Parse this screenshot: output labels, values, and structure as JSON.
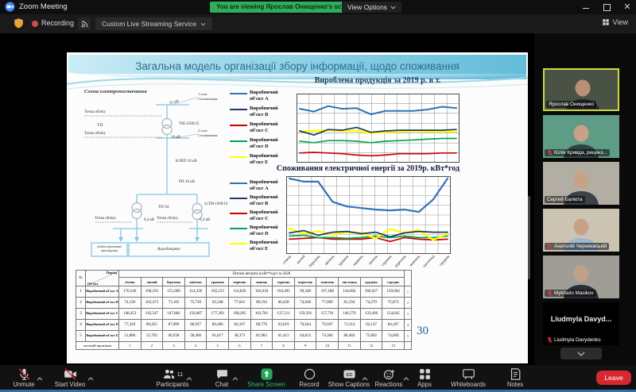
{
  "window": {
    "app_title": "Zoom Meeting",
    "banner_text": "You are viewing Ярослав Онищенко's screen",
    "view_options_label": "View Options",
    "recording_label": "Recording",
    "streaming_service_label": "Custom Live Streaming Service",
    "view_label": "View"
  },
  "slide": {
    "title": "Загальна модель організації збору інформації, щодо споживання",
    "page_number": "30",
    "diagram": {
      "title": "Схема електропостачання",
      "kv35": "35 кВ",
      "class1a": "1 клас",
      "class1b": "Споживання",
      "metering": "Точка обліку",
      "tp": "ТП",
      "tm": "ТМ-2500/35",
      "kv10": "10 кВ",
      "class2a": "2 клас",
      "class2b": "Споживання",
      "klep": "КЛЕП 10 кВ",
      "rp": "РП-10 кВ",
      "tp94": "ТП-94",
      "tm2": "2хТМ-1000/10",
      "kv04": "0,4 кВ",
      "box_admin_a": "адміністративні",
      "box_admin_b": "приміщення",
      "box_prod": "Виробництво"
    },
    "table": {
      "corner_no": "№",
      "corner_period": "Період",
      "corner_object": "Об'єкт",
      "span_header": "Питомі витрати в кВт*год/т за 2020",
      "months": [
        "січень",
        "лютий",
        "березень",
        "квітень",
        "травень",
        "червень",
        "липень",
        "серпень",
        "вересень",
        "жовтень",
        "листопад",
        "грудень"
      ],
      "avg_header": "середнє",
      "rows": [
        {
          "n": "1",
          "name": "Виробничий об'єкт А",
          "values": [
            "170,346",
            "168,193",
            "155,689",
            "114,336",
            "102,213",
            "114,826",
            "102,618",
            "104,495",
            "99,348",
            "107,188",
            "144,602",
            "166,627",
            "129,694"
          ]
        },
        {
          "n": "2",
          "name": "Виробничий об'єкт В",
          "values": [
            "74,120",
            "102,473",
            "73,165",
            "75,720",
            "62,248",
            "77,641",
            "80,194",
            "60,458",
            "74,638",
            "77,069",
            "81,194",
            "74,279",
            "75,873"
          ]
        },
        {
          "n": "3",
          "name": "Виробничий об'єкт С",
          "values": [
            "148,453",
            "142,547",
            "147,882",
            "156,687",
            "177,302",
            "198,205",
            "163,781",
            "137,511",
            "159,391",
            "157,791",
            "146,579",
            "133,496",
            "154,645"
          ]
        },
        {
          "n": "4",
          "name": "Виробничий об'єкт D",
          "values": [
            "77,320",
            "89,455",
            "87,909",
            "86,927",
            "80,486",
            "83,167",
            "80,776",
            "63,619",
            "70,644",
            "70,947",
            "71,214",
            "62,147",
            "84,187"
          ]
        },
        {
          "n": "5",
          "name": "Виробничий об'єкт Е",
          "values": [
            "51,880",
            "52,703",
            "60,938",
            "58,406",
            "61,817",
            "38,373",
            "81,983",
            "61,413",
            "64,813",
            "74,384",
            "88,484",
            "75,892",
            "74,609"
          ]
        }
      ],
      "row_index": [
        "1",
        "2",
        "3",
        "4",
        "5"
      ],
      "footer_label": "часовий проміжок",
      "footer_values": [
        "1",
        "2",
        "3",
        "4",
        "5",
        "6",
        "7",
        "8",
        "9",
        "10",
        "11",
        "12",
        "13"
      ]
    }
  },
  "chart_data": [
    {
      "type": "line",
      "title": "Вироблена продукція за 2019 р. в т.",
      "categories": [
        "січень",
        "лютий",
        "березень",
        "квітень",
        "травень",
        "червень",
        "липень",
        "серпень",
        "вересень",
        "жовтень",
        "листопад",
        "грудень"
      ],
      "legend_position": "left",
      "grid": true,
      "ylim": [
        0,
        100
      ],
      "units": "relative scale 0-100, y-axis unlabeled in source",
      "series": [
        {
          "name": "Виробничий об'єкт А",
          "color": "#2e74b5",
          "z": 5,
          "width": 2.0,
          "values": [
            78,
            74,
            82,
            78,
            79,
            70,
            75,
            75,
            75,
            77,
            81,
            79
          ]
        },
        {
          "name": "Виробничий об'єкт В",
          "color": "#1f3864",
          "z": 4,
          "width": 1.7,
          "values": [
            46,
            40,
            48,
            47,
            51,
            44,
            46,
            47,
            47,
            47,
            47,
            48
          ]
        },
        {
          "name": "Виробничий об'єкт С",
          "color": "#cc0000",
          "z": 1,
          "width": 1.7,
          "values": [
            14,
            15,
            14,
            13,
            11,
            10,
            11,
            13,
            13,
            13,
            14,
            14
          ]
        },
        {
          "name": "Виробничий об'єкт D",
          "color": "#00a550",
          "z": 2,
          "width": 1.7,
          "values": [
            31,
            29,
            32,
            32,
            31,
            29,
            31,
            32,
            33,
            34,
            35,
            35
          ]
        },
        {
          "name": "Виробничий об'єкт Е",
          "color": "#ffff00",
          "z": 3,
          "width": 2.4,
          "values": [
            45,
            46,
            47,
            46,
            46,
            43,
            44,
            45,
            46,
            45,
            45,
            45
          ]
        }
      ]
    },
    {
      "type": "line",
      "title": "Споживання електричної енергії за 2019р. кВт*год",
      "categories": [
        "січень",
        "лютий",
        "березень",
        "квітень",
        "травень",
        "червень",
        "липень",
        "серпень",
        "вересень",
        "жовтень",
        "листопад",
        "грудень"
      ],
      "legend_position": "left",
      "grid": true,
      "ylim": [
        0,
        100
      ],
      "units": "relative scale 0-100, y-axis unlabeled in source",
      "series": [
        {
          "name": "Виробничий об'єкт А",
          "color": "#2e74b5",
          "z": 5,
          "width": 2.2,
          "values": [
            97,
            93,
            93,
            67,
            61,
            59,
            57,
            56,
            57,
            54,
            70,
            97
          ]
        },
        {
          "name": "Виробничий об'єкт В",
          "color": "#1f3864",
          "z": 4,
          "width": 1.7,
          "values": [
            27,
            30,
            24,
            28,
            29,
            26,
            28,
            22,
            27,
            29,
            28,
            28
          ]
        },
        {
          "name": "Виробничий об'єкт С",
          "color": "#cc0000",
          "z": 1,
          "width": 1.7,
          "values": [
            19,
            20,
            21,
            19,
            19,
            19,
            21,
            16,
            21,
            19,
            18,
            19
          ]
        },
        {
          "name": "Виробничий об'єкт D",
          "color": "#00a550",
          "z": 2,
          "width": 1.7,
          "values": [
            23,
            24,
            21,
            21,
            20,
            21,
            23,
            21,
            23,
            21,
            21,
            23
          ]
        },
        {
          "name": "Виробничий об'єкт Е",
          "color": "#ffff00",
          "z": 3,
          "width": 2.4,
          "values": [
            33,
            26,
            29,
            25,
            28,
            27,
            20,
            32,
            27,
            31,
            18,
            26
          ]
        }
      ]
    }
  ],
  "participants": [
    {
      "name": "Ярослав Онищенко",
      "muted": false,
      "active": true,
      "video": true,
      "bg": "#4a5245",
      "shirt": "#23272b",
      "skin": "#b98f76"
    },
    {
      "name": "Юлія Кривда, реценз...",
      "muted": true,
      "video": true,
      "bg": "#5f9c86",
      "shirt": "#2e4440",
      "skin": "#c9a184"
    },
    {
      "name": "Сергей Балюта",
      "muted": false,
      "video": true,
      "bg": "#b3aea4",
      "shirt": "#3b4148",
      "skin": "#c7a287"
    },
    {
      "name": "Анатолій Черняєвській",
      "muted": true,
      "video": true,
      "bg": "#cbc4b2",
      "shirt": "#9db8cc",
      "skin": "#c7a287"
    },
    {
      "name": "Mykhailo Masikov",
      "muted": true,
      "video": true,
      "bg": "#a09d97",
      "shirt": "#2b2e33",
      "skin": "#c2a18a"
    },
    {
      "name": "Liudmyla Davydenko",
      "display": "Liudmyla  Davyd...",
      "muted": true,
      "video": false,
      "bg": "#000000"
    }
  ],
  "toolbar": {
    "participants_count": "11",
    "leave_label": "Leave",
    "items": [
      {
        "id": "unmute",
        "label": "Unmute",
        "chevron": true,
        "slash": true
      },
      {
        "id": "start-video",
        "label": "Start Video",
        "chevron": true,
        "slash": true
      },
      {
        "id": "participants",
        "label": "Participants",
        "chevron": true,
        "badge": true
      },
      {
        "id": "chat",
        "label": "Chat",
        "chevron": true
      },
      {
        "id": "share-screen",
        "label": "Share Screen",
        "accent": true
      },
      {
        "id": "record",
        "label": "Record"
      },
      {
        "id": "captions",
        "label": "Show Captions",
        "chevron": true
      },
      {
        "id": "reactions",
        "label": "Reactions",
        "chevron": true
      },
      {
        "id": "apps",
        "label": "Apps"
      },
      {
        "id": "whiteboards",
        "label": "Whiteboards"
      },
      {
        "id": "notes",
        "label": "Notes"
      }
    ]
  }
}
